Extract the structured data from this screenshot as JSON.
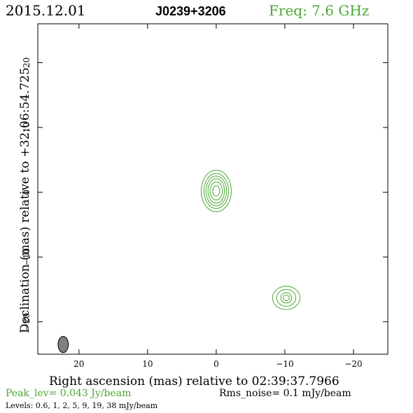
{
  "header": {
    "date": "2015.12.01",
    "source": "J0239+3206",
    "freq": "Freq: 7.6 GHz"
  },
  "footer": {
    "peak": "Peak_lev=  0.043 Jy/beam",
    "rms": "Rms_noise=  0.1 mJy/beam",
    "levels": "Levels: 0.6,   1,   2,   5,   9,  19,  38 mJy/beam"
  },
  "colors": {
    "contour": "#4aa832",
    "beam": "#808080",
    "axis": "#000000",
    "freq_text": "#4aa832",
    "peak_text": "#4aa832"
  },
  "chart_data": {
    "type": "contour",
    "xlabel": "Right ascension (mas) relative to 02:39:37.7966",
    "ylabel": "Declination (mas) relative to +32:06:54.725",
    "xlim": [
      26,
      -25
    ],
    "ylim": [
      -25,
      26
    ],
    "x_ticks": [
      20,
      10,
      0,
      -10,
      -20
    ],
    "x_tick_labels": [
      "20",
      "10",
      "0",
      "−10",
      "−20"
    ],
    "y_ticks": [
      20,
      10,
      0,
      -10,
      -20
    ],
    "y_tick_labels": [
      "20",
      "10",
      "0",
      "−10",
      "−20"
    ],
    "components": [
      {
        "center": [
          0.0,
          0.2
        ],
        "contours": [
          {
            "a": 2.2,
            "b": 3.2
          },
          {
            "a": 1.8,
            "b": 2.7
          },
          {
            "a": 1.5,
            "b": 2.3
          },
          {
            "a": 1.2,
            "b": 1.9
          },
          {
            "a": 0.9,
            "b": 1.4
          },
          {
            "a": 0.5,
            "b": 0.8
          }
        ]
      },
      {
        "center": [
          -10.2,
          -16.3
        ],
        "contours": [
          {
            "a": 2.0,
            "b": 1.8
          },
          {
            "a": 1.4,
            "b": 1.3
          },
          {
            "a": 0.8,
            "b": 0.8
          },
          {
            "a": 0.45,
            "b": 0.45
          }
        ]
      }
    ],
    "beam": {
      "center": [
        22.3,
        -23.5
      ],
      "major": 1.25,
      "minor": 0.75
    }
  }
}
